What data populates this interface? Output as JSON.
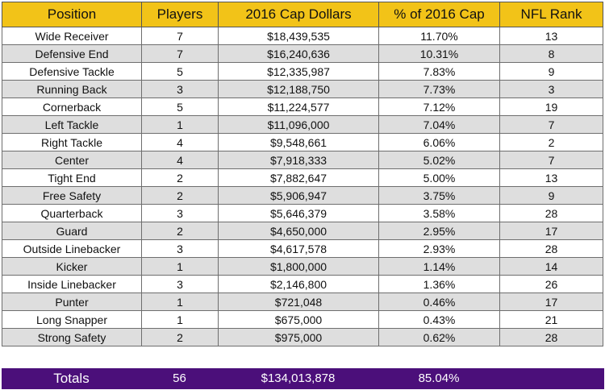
{
  "table": {
    "headers": [
      "Position",
      "Players",
      "2016 Cap Dollars",
      "% of 2016 Cap",
      "NFL Rank"
    ],
    "rows": [
      [
        "Wide Receiver",
        "7",
        "$18,439,535",
        "11.70%",
        "13"
      ],
      [
        "Defensive End",
        "7",
        "$16,240,636",
        "10.31%",
        "8"
      ],
      [
        "Defensive Tackle",
        "5",
        "$12,335,987",
        "7.83%",
        "9"
      ],
      [
        "Running Back",
        "3",
        "$12,188,750",
        "7.73%",
        "3"
      ],
      [
        "Cornerback",
        "5",
        "$11,224,577",
        "7.12%",
        "19"
      ],
      [
        "Left Tackle",
        "1",
        "$11,096,000",
        "7.04%",
        "7"
      ],
      [
        "Right Tackle",
        "4",
        "$9,548,661",
        "6.06%",
        "2"
      ],
      [
        "Center",
        "4",
        "$7,918,333",
        "5.02%",
        "7"
      ],
      [
        "Tight End",
        "2",
        "$7,882,647",
        "5.00%",
        "13"
      ],
      [
        "Free Safety",
        "2",
        "$5,906,947",
        "3.75%",
        "9"
      ],
      [
        "Quarterback",
        "3",
        "$5,646,379",
        "3.58%",
        "28"
      ],
      [
        "Guard",
        "2",
        "$4,650,000",
        "2.95%",
        "17"
      ],
      [
        "Outside Linebacker",
        "3",
        "$4,617,578",
        "2.93%",
        "28"
      ],
      [
        "Kicker",
        "1",
        "$1,800,000",
        "1.14%",
        "14"
      ],
      [
        "Inside Linebacker",
        "3",
        "$2,146,800",
        "1.36%",
        "26"
      ],
      [
        "Punter",
        "1",
        "$721,048",
        "0.46%",
        "17"
      ],
      [
        "Long Snapper",
        "1",
        "$675,000",
        "0.43%",
        "21"
      ],
      [
        "Strong Safety",
        "2",
        "$975,000",
        "0.62%",
        "28"
      ]
    ]
  },
  "totals": {
    "label": "Totals",
    "players": "56",
    "cap_dollars": "$134,013,878",
    "pct_of_cap": "85.04%",
    "nfl_rank": ""
  },
  "colors": {
    "header_background": "#f2c318",
    "totals_background": "#4b0f7a",
    "stripe_background": "#dedede"
  }
}
